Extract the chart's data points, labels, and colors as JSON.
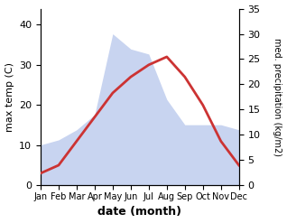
{
  "months": [
    "Jan",
    "Feb",
    "Mar",
    "Apr",
    "May",
    "Jun",
    "Jul",
    "Aug",
    "Sep",
    "Oct",
    "Nov",
    "Dec"
  ],
  "x": [
    1,
    2,
    3,
    4,
    5,
    6,
    7,
    8,
    9,
    10,
    11,
    12
  ],
  "max_temp": [
    3,
    5,
    11,
    17,
    23,
    27,
    30,
    32,
    27,
    20,
    11,
    5
  ],
  "precipitation": [
    8,
    9,
    11,
    14,
    30,
    27,
    26,
    17,
    12,
    12,
    12,
    11
  ],
  "temp_color": "#cc3333",
  "precip_fill_color": "#c8d4f0",
  "left_ylim": [
    0,
    44
  ],
  "right_ylim": [
    0,
    35
  ],
  "left_yticks": [
    0,
    10,
    20,
    30,
    40
  ],
  "right_yticks": [
    0,
    5,
    10,
    15,
    20,
    25,
    30,
    35
  ],
  "xlabel": "date (month)",
  "ylabel_left": "max temp (C)",
  "ylabel_right": "med. precipitation (kg/m2)",
  "fig_width": 3.18,
  "fig_height": 2.47,
  "dpi": 100
}
